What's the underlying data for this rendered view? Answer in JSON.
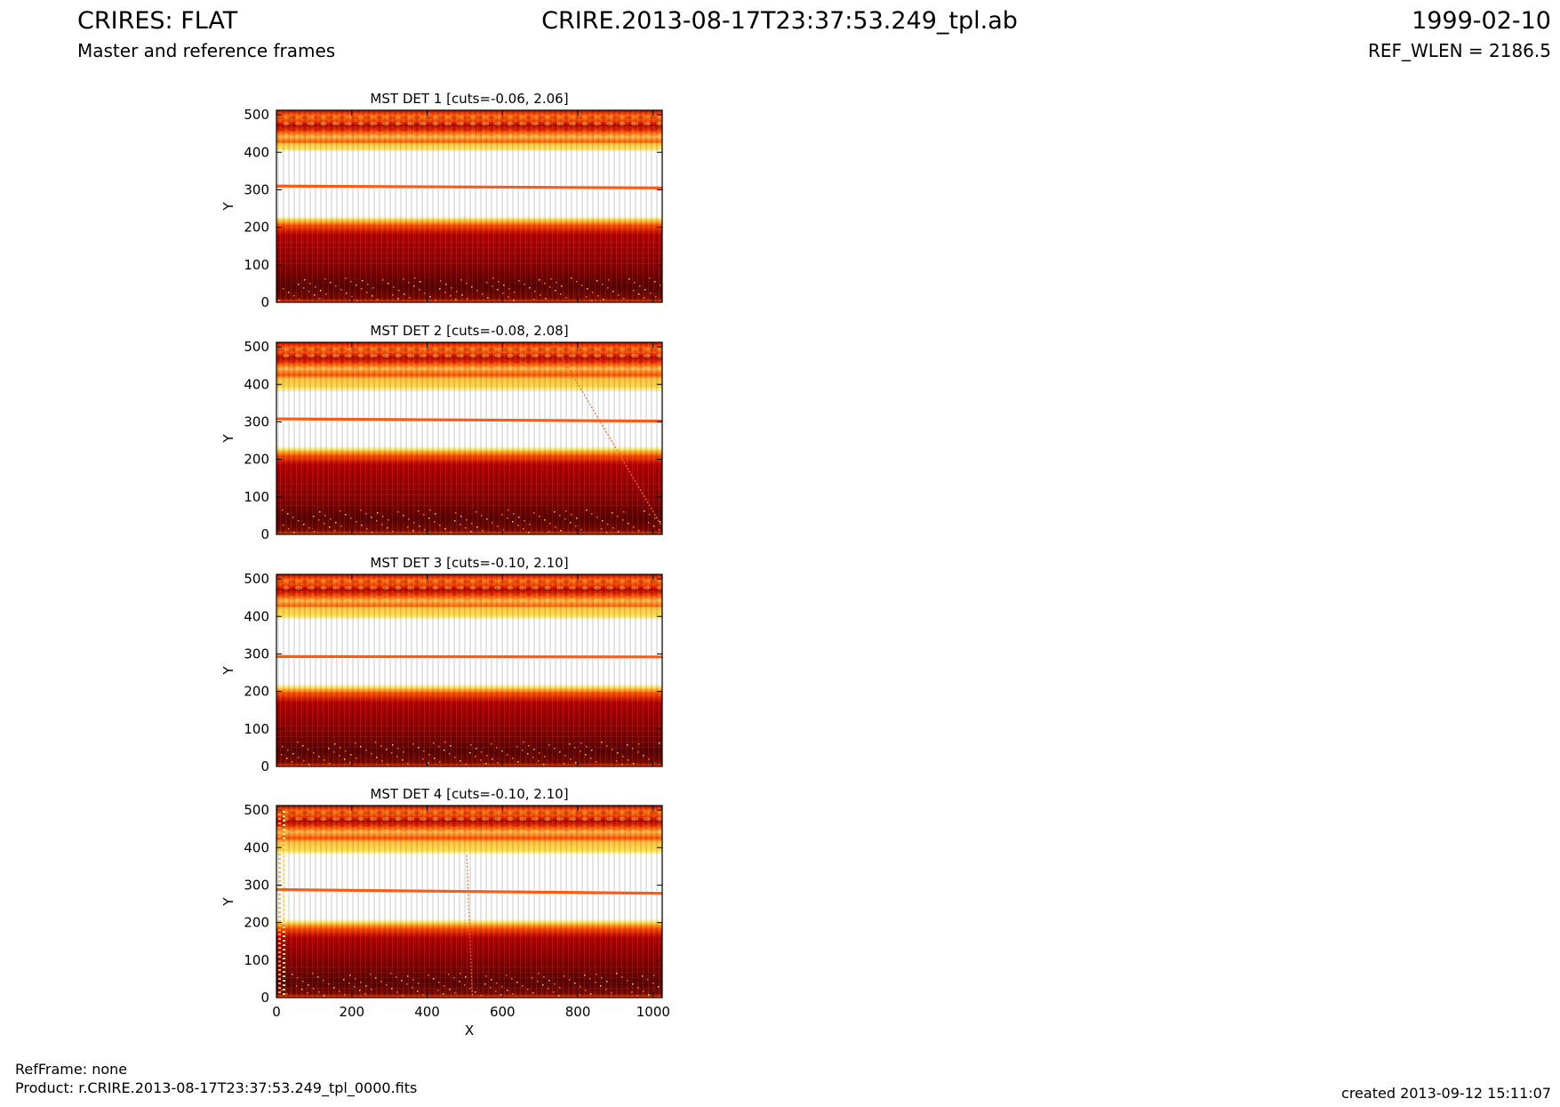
{
  "header": {
    "title_left": "CRIRES: FLAT",
    "subtitle_left": "Master and reference frames",
    "title_center": "CRIRE.2013-08-17T23:37:53.249_tpl.ab",
    "title_right": "1999-02-10",
    "subtitle_right": "REF_WLEN = 2186.5"
  },
  "footer": {
    "refframe": "RefFrame: none",
    "product": "Product: r.CRIRE.2013-08-17T23:37:53.249_tpl_0000.fits",
    "created": "created 2013-09-12 15:11:07"
  },
  "colors": {
    "dark": "#5a0000",
    "red": "#b40000",
    "orange": "#ff5000",
    "yellow": "#ffe050",
    "white": "#ffffff",
    "line": "#ff5a14"
  },
  "chart_data": [
    {
      "type": "heatmap",
      "title": "MST DET 1 [cuts=-0.06, 2.06]",
      "ylabel": "Y",
      "xlabel": "",
      "xlim": [
        0,
        1024
      ],
      "ylim": [
        0,
        512
      ],
      "yticks": [
        "0",
        "100",
        "200",
        "300",
        "400",
        "500"
      ],
      "xticks": [],
      "white_band": [
        230,
        400
      ],
      "line_y": [
        310,
        305
      ],
      "streak": null
    },
    {
      "type": "heatmap",
      "title": "MST DET 2 [cuts=-0.08, 2.08]",
      "ylabel": "Y",
      "xlabel": "",
      "xlim": [
        0,
        1024
      ],
      "ylim": [
        0,
        512
      ],
      "yticks": [
        "0",
        "100",
        "200",
        "300",
        "400",
        "500"
      ],
      "xticks": [],
      "white_band": [
        235,
        380
      ],
      "line_y": [
        308,
        302
      ],
      "streak": [
        [
          735,
          512
        ],
        [
          1024,
          20
        ]
      ]
    },
    {
      "type": "heatmap",
      "title": "MST DET 3 [cuts=-0.10, 2.10]",
      "ylabel": "Y",
      "xlabel": "",
      "xlim": [
        0,
        1024
      ],
      "ylim": [
        0,
        512
      ],
      "yticks": [
        "0",
        "100",
        "200",
        "300",
        "400",
        "500"
      ],
      "xticks": [],
      "white_band": [
        220,
        390
      ],
      "line_y": [
        293,
        292
      ],
      "streak": null
    },
    {
      "type": "heatmap",
      "title": "MST DET 4 [cuts=-0.10, 2.10]",
      "ylabel": "Y",
      "xlabel": "X",
      "xlim": [
        0,
        1024
      ],
      "ylim": [
        0,
        512
      ],
      "yticks": [
        "0",
        "100",
        "200",
        "300",
        "400",
        "500"
      ],
      "xticks": [
        "0",
        "200",
        "400",
        "600",
        "800",
        "1000"
      ],
      "white_band": [
        210,
        380
      ],
      "line_y": [
        288,
        278
      ],
      "streak": [
        [
          505,
          380
        ],
        [
          520,
          0
        ]
      ]
    }
  ]
}
